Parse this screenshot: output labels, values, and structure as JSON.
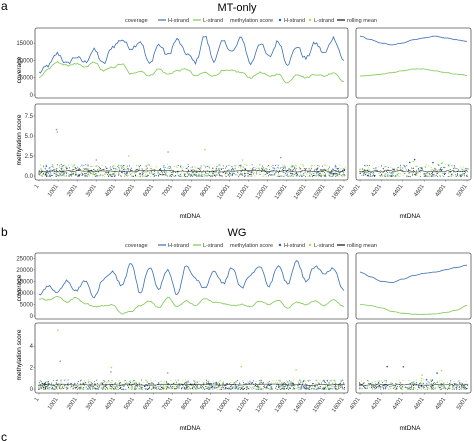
{
  "panels": [
    {
      "letter": "a",
      "title": "MT-only"
    },
    {
      "letter": "b",
      "title": "WG"
    },
    {
      "letter": "c"
    }
  ],
  "legend": {
    "coverage_label": "coverage",
    "h_strand": "H-strand",
    "l_strand": "L-strand",
    "methylation_label": "methylation score",
    "h_strand2": "H-strand",
    "l_strand2": "L-strand",
    "rolling_mean": "rolling mean"
  },
  "colors": {
    "h_strand": "#3b6fb6",
    "l_strand": "#7ec850",
    "points_h": "#1f5fb5",
    "points_l": "#9be64a",
    "rolling": "#111111",
    "panel_border": "#555555"
  },
  "chart_data": [
    {
      "type": "line",
      "panel": "a",
      "subplot": "coverage-full",
      "title": "MT-only",
      "xlabel": "",
      "ylabel": "coverage",
      "xlim": [
        1,
        16569
      ],
      "ylim": [
        0,
        18500
      ],
      "yticks": [
        "0",
        "5000",
        "10000",
        "15000"
      ],
      "x": [
        1,
        500,
        1000,
        1500,
        2000,
        2500,
        3000,
        3500,
        4000,
        4500,
        5000,
        5500,
        6000,
        6500,
        7000,
        7500,
        8000,
        8500,
        9000,
        9500,
        10000,
        10500,
        11000,
        11500,
        12000,
        12500,
        13000,
        13500,
        14000,
        14500,
        15000,
        15500,
        16000,
        16569
      ],
      "series": [
        {
          "name": "H-strand",
          "values": [
            6500,
            8500,
            12000,
            9000,
            11000,
            9500,
            13000,
            9000,
            14000,
            16000,
            13500,
            15500,
            9000,
            14500,
            11500,
            16000,
            12000,
            9500,
            17000,
            10000,
            15500,
            12500,
            16500,
            9000,
            15000,
            11000,
            15500,
            9000,
            14000,
            10500,
            15000,
            12000,
            16500,
            10000
          ]
        },
        {
          "name": "L-strand",
          "values": [
            5000,
            7500,
            9500,
            8500,
            9000,
            8000,
            9500,
            7000,
            8000,
            9000,
            6000,
            7000,
            5500,
            7500,
            6000,
            7000,
            7500,
            5500,
            6500,
            5500,
            7000,
            7000,
            6500,
            5000,
            6500,
            5500,
            6000,
            3500,
            6000,
            5000,
            6000,
            5500,
            6500,
            4000
          ]
        }
      ]
    },
    {
      "type": "line",
      "panel": "a",
      "subplot": "coverage-zoom",
      "xlim": [
        4001,
        5001
      ],
      "x": [
        4001,
        4100,
        4200,
        4300,
        4400,
        4500,
        4600,
        4700,
        4800,
        4900,
        5001
      ],
      "series": [
        {
          "name": "H-strand",
          "values": [
            17000,
            16000,
            15000,
            14500,
            15000,
            16000,
            16500,
            17000,
            16500,
            16000,
            15500
          ]
        },
        {
          "name": "L-strand",
          "values": [
            5500,
            5700,
            6000,
            6500,
            7000,
            7500,
            7500,
            7000,
            6500,
            6000,
            5700
          ]
        }
      ]
    },
    {
      "type": "scatter",
      "panel": "a",
      "subplot": "methylation-full",
      "xlabel": "mtDNA",
      "ylabel": "methylation score",
      "ylim": [
        0,
        8.5
      ],
      "yticks": [
        "0.0",
        "2.5",
        "5.0",
        "7.5"
      ],
      "xticks": [
        "1",
        "1001",
        "2001",
        "3001",
        "4001",
        "5001",
        "6001",
        "7001",
        "8001",
        "9001",
        "10001",
        "11001",
        "12001",
        "13001",
        "14001",
        "15001",
        "16001"
      ],
      "typical_range": [
        0,
        1.5
      ],
      "outliers": [
        [
          1001,
          5.5
        ],
        [
          1001,
          5.8
        ],
        [
          3001,
          2.0
        ],
        [
          5001,
          2.5
        ],
        [
          7001,
          3.0
        ],
        [
          9001,
          3.3
        ],
        [
          11001,
          2.0
        ],
        [
          13001,
          2.3
        ]
      ],
      "rolling_mean": 0.6
    },
    {
      "type": "scatter",
      "panel": "a",
      "subplot": "methylation-zoom",
      "xlabel": "mtDNA",
      "xticks": [
        "4001",
        "4201",
        "4401",
        "4601",
        "4801",
        "5001"
      ]
    },
    {
      "type": "line",
      "panel": "b",
      "subplot": "coverage-full",
      "title": "WG",
      "ylabel": "coverage",
      "xlim": [
        1,
        16569
      ],
      "ylim": [
        0,
        26000
      ],
      "yticks": [
        "0",
        "5000",
        "10000",
        "15000",
        "20000",
        "25000"
      ],
      "x": [
        1,
        500,
        1000,
        1500,
        2000,
        2500,
        3000,
        3500,
        4000,
        4500,
        5000,
        5500,
        6000,
        6500,
        7000,
        7500,
        8000,
        8500,
        9000,
        9500,
        10000,
        10500,
        11000,
        11500,
        12000,
        12500,
        13000,
        13500,
        14000,
        14500,
        15000,
        15500,
        16000,
        16569
      ],
      "series": [
        {
          "name": "H-strand",
          "values": [
            9000,
            13000,
            10000,
            15500,
            11000,
            15000,
            8000,
            16000,
            19000,
            13000,
            23000,
            10000,
            21000,
            12000,
            20000,
            9000,
            22000,
            16000,
            12000,
            19500,
            14000,
            21000,
            12000,
            18000,
            21500,
            13000,
            22000,
            14000,
            24000,
            15000,
            21500,
            18500,
            20500,
            11000
          ]
        },
        {
          "name": "L-strand",
          "values": [
            7500,
            7000,
            8500,
            6000,
            8000,
            5500,
            4000,
            4500,
            5000,
            1000,
            2000,
            4500,
            6500,
            3500,
            8000,
            4000,
            6500,
            4500,
            7500,
            6000,
            5500,
            4500,
            5000,
            4000,
            6500,
            5000,
            7000,
            3500,
            6000,
            5000,
            6500,
            4500,
            7000,
            4000
          ]
        }
      ]
    },
    {
      "type": "line",
      "panel": "b",
      "subplot": "coverage-zoom",
      "xlim": [
        4001,
        5001
      ],
      "x": [
        4001,
        4100,
        4200,
        4300,
        4400,
        4500,
        4600,
        4700,
        4800,
        4900,
        5001
      ],
      "series": [
        {
          "name": "H-strand",
          "values": [
            19000,
            17000,
            15000,
            14500,
            16000,
            17500,
            18500,
            19000,
            20000,
            21000,
            22000
          ]
        },
        {
          "name": "L-strand",
          "values": [
            5000,
            4500,
            3500,
            2000,
            1200,
            800,
            700,
            900,
            1500,
            2500,
            4500
          ]
        }
      ]
    },
    {
      "type": "scatter",
      "panel": "b",
      "subplot": "methylation-full",
      "xlabel": "mtDNA",
      "ylabel": "methylation score",
      "ylim": [
        0,
        5.8
      ],
      "yticks": [
        "0",
        "2",
        "4"
      ],
      "xticks": [
        "1",
        "1001",
        "2001",
        "3001",
        "4001",
        "5001",
        "6001",
        "7001",
        "8001",
        "9001",
        "10001",
        "11001",
        "12001",
        "13001",
        "14001",
        "15001",
        "16001"
      ],
      "typical_range": [
        0,
        0.9
      ],
      "outliers": [
        [
          1001,
          5.5
        ],
        [
          1001,
          2.6
        ],
        [
          4001,
          2.0
        ],
        [
          4001,
          1.6
        ],
        [
          7001,
          1.5
        ],
        [
          11001,
          2.1
        ],
        [
          14001,
          1.8
        ]
      ],
      "rolling_mean": 0.4
    },
    {
      "type": "scatter",
      "panel": "b",
      "subplot": "methylation-zoom",
      "xlabel": "mtDNA",
      "xticks": [
        "4001",
        "4201",
        "4401",
        "4601",
        "4801",
        "5001"
      ]
    }
  ]
}
